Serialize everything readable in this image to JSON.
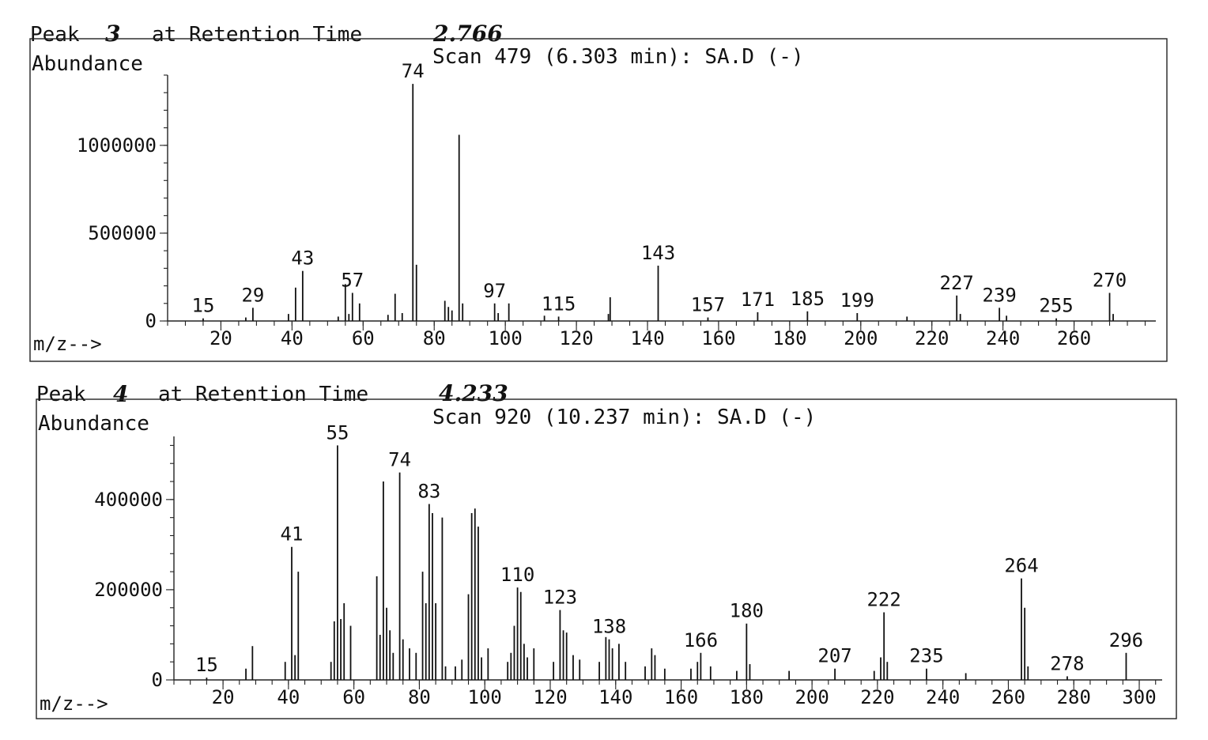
{
  "chart_data": [
    {
      "type": "bar",
      "title": "Peak",
      "peak_number": "3",
      "title_mid": "at Retention Time",
      "retention_time": "2.766",
      "scan_label": "Scan 479 (6.303 min): SA.D (-)",
      "ylabel": "Abundance",
      "xlabel": "m/z-->",
      "xlim": [
        5,
        283
      ],
      "ylim": [
        0,
        1400000
      ],
      "y_ticks": [
        0,
        500000,
        1000000
      ],
      "y_tick_labels": [
        "0",
        "500000",
        "1000000"
      ],
      "x_ticks": [
        20,
        40,
        60,
        80,
        100,
        120,
        140,
        160,
        180,
        200,
        220,
        240,
        260
      ],
      "x_tick_labels": [
        "20",
        "40",
        "60",
        "80",
        "100",
        "120",
        "140",
        "160",
        "180",
        "200",
        "220",
        "240",
        "260"
      ],
      "peaks": [
        {
          "x": 15,
          "y": 15000,
          "label": "15"
        },
        {
          "x": 27,
          "y": 20000
        },
        {
          "x": 29,
          "y": 75000,
          "label": "29"
        },
        {
          "x": 39,
          "y": 40000
        },
        {
          "x": 41,
          "y": 190000
        },
        {
          "x": 43,
          "y": 285000,
          "label": "43"
        },
        {
          "x": 53,
          "y": 25000
        },
        {
          "x": 55,
          "y": 210000
        },
        {
          "x": 56,
          "y": 40000
        },
        {
          "x": 57,
          "y": 160000,
          "label": "57"
        },
        {
          "x": 59,
          "y": 100000
        },
        {
          "x": 67,
          "y": 35000
        },
        {
          "x": 69,
          "y": 155000
        },
        {
          "x": 71,
          "y": 45000
        },
        {
          "x": 74,
          "y": 1350000,
          "label": "74"
        },
        {
          "x": 75,
          "y": 320000
        },
        {
          "x": 83,
          "y": 115000
        },
        {
          "x": 84,
          "y": 80000
        },
        {
          "x": 85,
          "y": 60000
        },
        {
          "x": 87,
          "y": 1060000
        },
        {
          "x": 88,
          "y": 100000
        },
        {
          "x": 97,
          "y": 100000,
          "label": "97"
        },
        {
          "x": 98,
          "y": 45000
        },
        {
          "x": 101,
          "y": 100000
        },
        {
          "x": 111,
          "y": 30000
        },
        {
          "x": 115,
          "y": 25000,
          "label": "115"
        },
        {
          "x": 129,
          "y": 40000
        },
        {
          "x": 129.5,
          "y": 135000
        },
        {
          "x": 143,
          "y": 315000,
          "label": "143"
        },
        {
          "x": 157,
          "y": 20000,
          "label": "157"
        },
        {
          "x": 171,
          "y": 50000,
          "label": "171"
        },
        {
          "x": 185,
          "y": 55000,
          "label": "185"
        },
        {
          "x": 199,
          "y": 45000,
          "label": "199"
        },
        {
          "x": 213,
          "y": 25000
        },
        {
          "x": 227,
          "y": 145000,
          "label": "227"
        },
        {
          "x": 228,
          "y": 40000
        },
        {
          "x": 239,
          "y": 75000,
          "label": "239"
        },
        {
          "x": 241,
          "y": 30000
        },
        {
          "x": 255,
          "y": 15000,
          "label": "255"
        },
        {
          "x": 270,
          "y": 160000,
          "label": "270"
        },
        {
          "x": 271,
          "y": 40000
        }
      ]
    },
    {
      "type": "bar",
      "title": "Peak",
      "peak_number": "4",
      "title_mid": "at Retention Time",
      "retention_time": "4.233",
      "scan_label": "Scan 920 (10.237 min): SA.D (-)",
      "ylabel": "Abundance",
      "xlabel": "m/z-->",
      "xlim": [
        5,
        307
      ],
      "ylim": [
        0,
        540000
      ],
      "y_ticks": [
        0,
        200000,
        400000
      ],
      "y_tick_labels": [
        "0",
        "200000",
        "400000"
      ],
      "x_ticks": [
        20,
        40,
        60,
        80,
        100,
        120,
        140,
        160,
        180,
        200,
        220,
        240,
        260,
        280,
        300
      ],
      "x_tick_labels": [
        "20",
        "40",
        "60",
        "80",
        "100",
        "120",
        "140",
        "160",
        "180",
        "200",
        "220",
        "240",
        "260",
        "280",
        "300"
      ],
      "peaks": [
        {
          "x": 15,
          "y": 5000,
          "label": "15"
        },
        {
          "x": 27,
          "y": 25000
        },
        {
          "x": 29,
          "y": 75000
        },
        {
          "x": 39,
          "y": 40000
        },
        {
          "x": 41,
          "y": 295000,
          "label": "41"
        },
        {
          "x": 42,
          "y": 55000
        },
        {
          "x": 43,
          "y": 240000
        },
        {
          "x": 53,
          "y": 40000
        },
        {
          "x": 54,
          "y": 130000
        },
        {
          "x": 55,
          "y": 520000,
          "label": "55"
        },
        {
          "x": 56,
          "y": 135000
        },
        {
          "x": 57,
          "y": 170000
        },
        {
          "x": 59,
          "y": 120000
        },
        {
          "x": 67,
          "y": 230000
        },
        {
          "x": 68,
          "y": 100000
        },
        {
          "x": 69,
          "y": 440000
        },
        {
          "x": 70,
          "y": 160000
        },
        {
          "x": 71,
          "y": 110000
        },
        {
          "x": 72,
          "y": 60000
        },
        {
          "x": 74,
          "y": 460000,
          "label": "74"
        },
        {
          "x": 75,
          "y": 90000
        },
        {
          "x": 77,
          "y": 70000
        },
        {
          "x": 79,
          "y": 60000
        },
        {
          "x": 81,
          "y": 240000
        },
        {
          "x": 82,
          "y": 170000
        },
        {
          "x": 83,
          "y": 390000,
          "label": "83"
        },
        {
          "x": 84,
          "y": 370000
        },
        {
          "x": 85,
          "y": 170000
        },
        {
          "x": 87,
          "y": 360000
        },
        {
          "x": 88,
          "y": 30000
        },
        {
          "x": 91,
          "y": 30000
        },
        {
          "x": 93,
          "y": 45000
        },
        {
          "x": 95,
          "y": 190000
        },
        {
          "x": 96,
          "y": 370000
        },
        {
          "x": 97,
          "y": 380000
        },
        {
          "x": 98,
          "y": 340000
        },
        {
          "x": 99,
          "y": 50000
        },
        {
          "x": 101,
          "y": 70000
        },
        {
          "x": 107,
          "y": 40000
        },
        {
          "x": 108,
          "y": 60000
        },
        {
          "x": 109,
          "y": 120000
        },
        {
          "x": 110,
          "y": 205000,
          "label": "110"
        },
        {
          "x": 111,
          "y": 195000
        },
        {
          "x": 112,
          "y": 80000
        },
        {
          "x": 113,
          "y": 50000
        },
        {
          "x": 115,
          "y": 70000
        },
        {
          "x": 121,
          "y": 40000
        },
        {
          "x": 123,
          "y": 155000,
          "label": "123"
        },
        {
          "x": 124,
          "y": 110000
        },
        {
          "x": 125,
          "y": 105000
        },
        {
          "x": 127,
          "y": 55000
        },
        {
          "x": 129,
          "y": 45000
        },
        {
          "x": 135,
          "y": 40000
        },
        {
          "x": 137,
          "y": 95000
        },
        {
          "x": 138,
          "y": 90000,
          "label": "138"
        },
        {
          "x": 139,
          "y": 70000
        },
        {
          "x": 141,
          "y": 80000
        },
        {
          "x": 143,
          "y": 40000
        },
        {
          "x": 149,
          "y": 30000
        },
        {
          "x": 151,
          "y": 70000
        },
        {
          "x": 152,
          "y": 55000
        },
        {
          "x": 155,
          "y": 25000
        },
        {
          "x": 163,
          "y": 25000
        },
        {
          "x": 165,
          "y": 40000
        },
        {
          "x": 166,
          "y": 60000,
          "label": "166"
        },
        {
          "x": 169,
          "y": 30000
        },
        {
          "x": 177,
          "y": 20000
        },
        {
          "x": 180,
          "y": 125000,
          "label": "180"
        },
        {
          "x": 181,
          "y": 35000
        },
        {
          "x": 193,
          "y": 20000
        },
        {
          "x": 207,
          "y": 25000,
          "label": "207"
        },
        {
          "x": 219,
          "y": 20000
        },
        {
          "x": 221,
          "y": 50000
        },
        {
          "x": 222,
          "y": 150000,
          "label": "222"
        },
        {
          "x": 223,
          "y": 40000
        },
        {
          "x": 235,
          "y": 25000,
          "label": "235"
        },
        {
          "x": 247,
          "y": 15000
        },
        {
          "x": 264,
          "y": 225000,
          "label": "264"
        },
        {
          "x": 265,
          "y": 160000
        },
        {
          "x": 266,
          "y": 30000
        },
        {
          "x": 278,
          "y": 8000,
          "label": "278"
        },
        {
          "x": 296,
          "y": 60000,
          "label": "296"
        }
      ]
    }
  ]
}
